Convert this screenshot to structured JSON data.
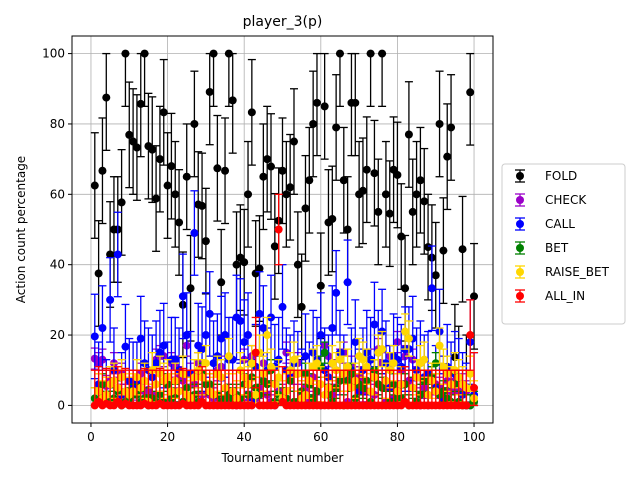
{
  "chart_data": {
    "type": "scatter",
    "title": "player_3(p)",
    "xlabel": "Tournament number",
    "ylabel": "Action count percentage",
    "xlim": [
      -4.95,
      104.95
    ],
    "ylim": [
      -5,
      105
    ],
    "x_ticks": [
      0,
      20,
      40,
      60,
      80,
      100
    ],
    "x_tick_labels": [
      "0",
      "20",
      "40",
      "60",
      "80",
      "100"
    ],
    "y_ticks": [
      0,
      20,
      40,
      60,
      80,
      100
    ],
    "y_tick_labels": [
      "0",
      "20",
      "40",
      "60",
      "80",
      "100"
    ],
    "grid": true,
    "legend_position": "right",
    "error_bars": true,
    "x": [
      1,
      2,
      3,
      4,
      5,
      6,
      7,
      8,
      9,
      10,
      11,
      12,
      13,
      14,
      15,
      16,
      17,
      18,
      19,
      20,
      21,
      22,
      23,
      24,
      25,
      26,
      27,
      28,
      29,
      30,
      31,
      32,
      33,
      34,
      35,
      36,
      37,
      38,
      39,
      40,
      41,
      42,
      43,
      44,
      45,
      46,
      47,
      48,
      49,
      50,
      51,
      52,
      53,
      54,
      55,
      56,
      57,
      58,
      59,
      60,
      61,
      62,
      63,
      64,
      65,
      66,
      67,
      68,
      69,
      70,
      71,
      72,
      73,
      74,
      75,
      76,
      77,
      78,
      79,
      80,
      81,
      82,
      83,
      84,
      85,
      86,
      87,
      88,
      89,
      90,
      91,
      92,
      93,
      94,
      95,
      96,
      97,
      98,
      99,
      100
    ],
    "series": [
      {
        "name": "FOLD",
        "color": "#000000",
        "err": 15,
        "values": [
          62.5,
          37.5,
          66.7,
          87.5,
          42.9,
          50,
          50,
          57.7,
          100,
          76.9,
          75,
          73.3,
          85.7,
          100,
          73.7,
          72.7,
          58.8,
          70,
          83.3,
          62.5,
          68,
          60,
          52,
          28.6,
          65,
          33.3,
          80,
          57.1,
          56.7,
          46.7,
          89.1,
          100,
          67.4,
          35,
          66.7,
          100,
          86.7,
          40,
          42,
          40.7,
          60,
          83.3,
          37.5,
          38.9,
          65,
          70,
          67.9,
          45.2,
          52.5,
          66.7,
          60,
          62,
          75,
          40,
          28,
          56,
          64,
          80,
          86,
          34,
          85,
          52,
          53,
          79,
          100,
          64,
          50,
          86,
          86,
          60,
          61,
          67,
          100,
          66,
          55,
          100,
          60,
          54.5,
          67,
          65.5,
          48,
          33.3,
          77,
          55,
          60,
          64,
          58,
          45,
          42,
          37,
          80,
          44,
          70.7,
          79,
          13.7,
          7.5,
          44.4,
          5,
          89,
          31
        ]
      },
      {
        "name": "CHECK",
        "color": "#9a00c8",
        "err": 3,
        "values": [
          13.3,
          12,
          13,
          5.5,
          7,
          12,
          5,
          9,
          3,
          1,
          4.5,
          3,
          9,
          4,
          4.5,
          3,
          13,
          14,
          14,
          6,
          12,
          11,
          8,
          7,
          17,
          9,
          6,
          12,
          3,
          6,
          3,
          2,
          10,
          11,
          1,
          3,
          2,
          0,
          2,
          13,
          1,
          14,
          2,
          5,
          12,
          3,
          1,
          0,
          4,
          3,
          15,
          10,
          9,
          12,
          3,
          5,
          1,
          8,
          4,
          0,
          17,
          14,
          3,
          10,
          13,
          15,
          1,
          11,
          8,
          8,
          4,
          4,
          13,
          3,
          16,
          12,
          1,
          14,
          2,
          18,
          10,
          14,
          7,
          13,
          8,
          0,
          5,
          0,
          8,
          6,
          5,
          2,
          7,
          4,
          7,
          4,
          6,
          4,
          0,
          1
        ]
      },
      {
        "name": "CALL",
        "color": "#0000ff",
        "err": 12,
        "values": [
          19.6,
          6,
          22,
          1,
          30,
          10,
          42.9,
          3,
          16.7,
          7,
          6,
          6,
          19,
          12,
          10,
          8,
          12,
          15,
          17,
          6,
          13,
          13,
          10,
          31,
          20,
          9,
          49,
          17,
          16,
          20,
          26,
          12,
          14,
          19,
          20,
          13,
          13,
          25,
          24,
          18,
          20,
          1,
          11,
          26,
          22,
          10,
          25,
          11,
          13,
          28,
          10,
          8,
          12,
          9,
          4,
          14,
          6,
          15,
          13,
          20,
          10,
          8,
          22,
          32,
          15,
          8,
          35,
          10,
          18,
          4,
          10,
          15,
          13,
          23,
          15,
          21,
          12,
          5,
          14,
          13,
          11,
          16,
          16,
          19,
          10,
          12,
          8,
          9,
          33.3,
          5,
          21,
          2,
          11,
          6,
          9,
          7,
          3,
          0,
          18,
          3
        ]
      },
      {
        "name": "BET",
        "color": "#008000",
        "err": 3,
        "values": [
          2,
          1,
          6,
          1,
          1,
          2,
          4,
          0,
          1,
          2,
          3,
          3,
          1,
          2,
          0,
          2,
          1,
          3,
          1,
          6,
          2,
          3,
          4,
          1,
          5,
          2,
          3,
          1,
          9,
          6,
          6,
          3,
          3,
          1,
          2,
          3,
          2,
          3,
          2,
          6,
          3,
          8,
          5,
          3,
          7,
          6,
          10,
          1,
          3,
          2,
          2,
          7,
          1,
          1,
          4,
          9,
          6,
          2,
          4,
          11,
          15,
          3,
          1,
          5,
          7,
          0,
          7,
          9,
          2,
          6,
          5,
          7,
          1,
          10,
          6,
          5,
          7,
          1,
          6,
          2,
          2,
          6,
          0,
          5,
          1,
          3,
          7,
          3,
          8,
          12,
          3,
          4,
          2,
          1,
          6,
          1,
          0,
          0,
          0,
          1
        ]
      },
      {
        "name": "RAISE_BET",
        "color": "#ffd700",
        "err": 5,
        "values": [
          0,
          4,
          2,
          3,
          6,
          7,
          5,
          8,
          4,
          3,
          4,
          8,
          5,
          7,
          1,
          10,
          6,
          9,
          7,
          8,
          4,
          7,
          4,
          9,
          3,
          2,
          8,
          10,
          8,
          12,
          4,
          3,
          9,
          8,
          5,
          14,
          4,
          2,
          10,
          8,
          6,
          12,
          3,
          15,
          9,
          20,
          11,
          6,
          8,
          2,
          4,
          10,
          13,
          9,
          2,
          3,
          7,
          11,
          12,
          6,
          3,
          5,
          12,
          10,
          13,
          9,
          11,
          5,
          7,
          14,
          13,
          11,
          4,
          8,
          15,
          16,
          7,
          10,
          12,
          4,
          6,
          21,
          19,
          5,
          8,
          12,
          13,
          3,
          7,
          4,
          17,
          11,
          9,
          6,
          10,
          8,
          6,
          5,
          9,
          2
        ]
      },
      {
        "name": "ALL_IN",
        "color": "#ff0000",
        "err": 10,
        "values": [
          0,
          1,
          0,
          0.5,
          0,
          0,
          1,
          0,
          0.5,
          0,
          0,
          0,
          0,
          0.5,
          0,
          0,
          0,
          0.5,
          0,
          0,
          0,
          0,
          0,
          0.5,
          0,
          0,
          0,
          0,
          1,
          0,
          0,
          0,
          0,
          0,
          0,
          0,
          0,
          0,
          0,
          0,
          0,
          0,
          15,
          0,
          0,
          0,
          0,
          0,
          50,
          1,
          0,
          0,
          0,
          0,
          0,
          0,
          0,
          0,
          0,
          0,
          0,
          0,
          0,
          0,
          0,
          0,
          0,
          0,
          0,
          0,
          0,
          0,
          0,
          0,
          0,
          0,
          0,
          0,
          0,
          0,
          0,
          1,
          0,
          0,
          0,
          0,
          0,
          0,
          0,
          0,
          0,
          0,
          0,
          0,
          0,
          0,
          0,
          0,
          20,
          5
        ]
      }
    ]
  }
}
